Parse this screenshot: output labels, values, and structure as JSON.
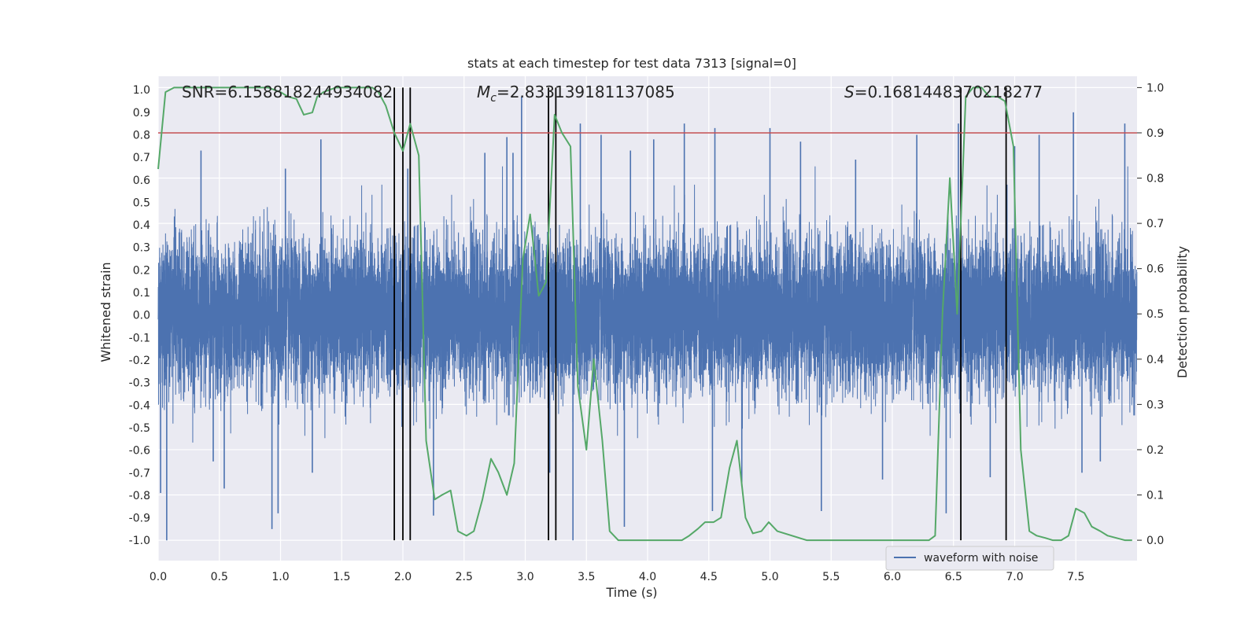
{
  "chart_data": {
    "type": "line",
    "title": "stats at each timestep for test data 7313 [signal=0]",
    "xlabel": "Time (s)",
    "ylabel_left": "Whitened strain",
    "ylabel_right": "Detection probability",
    "xlim": [
      0,
      8.0
    ],
    "ylim_left": [
      -1.09,
      1.06
    ],
    "ylim_right": [
      -0.045,
      1.025
    ],
    "x_ticks": [
      0.0,
      0.5,
      1.0,
      1.5,
      2.0,
      2.5,
      3.0,
      3.5,
      4.0,
      4.5,
      5.0,
      5.5,
      6.0,
      6.5,
      7.0,
      7.5
    ],
    "x_tick_labels": [
      "0.0",
      "0.5",
      "1.0",
      "1.5",
      "2.0",
      "2.5",
      "3.0",
      "3.5",
      "4.0",
      "4.5",
      "5.0",
      "5.5",
      "6.0",
      "6.5",
      "7.0",
      "7.5"
    ],
    "y_left_ticks": [
      1.0,
      0.9,
      0.8,
      0.7,
      0.6,
      0.5,
      0.4,
      0.3,
      0.2,
      0.1,
      0.0,
      -0.1,
      -0.2,
      -0.3,
      -0.4,
      -0.5,
      -0.6,
      -0.7,
      -0.8,
      -0.9,
      -1.0
    ],
    "y_left_tick_labels": [
      "1.0",
      "0.9",
      "0.8",
      "0.7",
      "0.6",
      "0.5",
      "0.4",
      "0.3",
      "0.2",
      "0.1",
      "0.0",
      "-0.1",
      "-0.2",
      "-0.3",
      "-0.4",
      "-0.5",
      "-0.6",
      "-0.7",
      "-0.8",
      "-0.9",
      "-1.0"
    ],
    "y_right_ticks": [
      1.0,
      0.9,
      0.8,
      0.7,
      0.6,
      0.5,
      0.4,
      0.3,
      0.2,
      0.1,
      0.0
    ],
    "y_right_tick_labels": [
      "1.0",
      "0.9",
      "0.8",
      "0.7",
      "0.6",
      "0.5",
      "0.4",
      "0.3",
      "0.2",
      "0.1",
      "0.0"
    ],
    "annotations": {
      "snr": "SNR=6.158818244934082",
      "mc_symbol": "M",
      "mc_sub": "c",
      "mc_value": "=2.833139181137085",
      "s_symbol": "S",
      "s_value": "=0.1681448370218277"
    },
    "legend": {
      "label": "waveform with noise",
      "position": "lower-right"
    },
    "threshold_line": {
      "axis": "right",
      "value": 0.9,
      "color": "#c44e52"
    },
    "vertical_lines": [
      1.93,
      2.0,
      2.06,
      3.19,
      3.25,
      6.56,
      6.93
    ],
    "waveform": {
      "name": "waveform with noise",
      "color": "#4c72b0",
      "sample_rate_hz": 2048,
      "duration_s": 8.0,
      "envelope": 0.42,
      "spikes": [
        {
          "t": 0.02,
          "v": -0.79
        },
        {
          "t": 0.07,
          "v": -1.0
        },
        {
          "t": 0.35,
          "v": 0.73
        },
        {
          "t": 0.45,
          "v": -0.65
        },
        {
          "t": 0.54,
          "v": -0.77
        },
        {
          "t": 0.93,
          "v": -0.95
        },
        {
          "t": 0.98,
          "v": -0.88
        },
        {
          "t": 1.04,
          "v": 0.65
        },
        {
          "t": 1.33,
          "v": 0.78
        },
        {
          "t": 1.26,
          "v": -0.7
        },
        {
          "t": 2.04,
          "v": 0.65
        },
        {
          "t": 2.25,
          "v": -0.89
        },
        {
          "t": 2.67,
          "v": 0.72
        },
        {
          "t": 2.85,
          "v": 0.79
        },
        {
          "t": 2.9,
          "v": 0.72
        },
        {
          "t": 2.97,
          "v": 0.97
        },
        {
          "t": 3.2,
          "v": -0.7
        },
        {
          "t": 3.39,
          "v": -1.0
        },
        {
          "t": 3.45,
          "v": 0.85
        },
        {
          "t": 3.62,
          "v": 0.8
        },
        {
          "t": 3.81,
          "v": -0.94
        },
        {
          "t": 3.86,
          "v": 0.73
        },
        {
          "t": 4.05,
          "v": 0.78
        },
        {
          "t": 4.3,
          "v": 0.85
        },
        {
          "t": 4.53,
          "v": -0.87
        },
        {
          "t": 4.55,
          "v": 0.83
        },
        {
          "t": 4.77,
          "v": -0.76
        },
        {
          "t": 5.0,
          "v": 0.83
        },
        {
          "t": 5.25,
          "v": 0.77
        },
        {
          "t": 5.42,
          "v": -0.87
        },
        {
          "t": 5.7,
          "v": 0.69
        },
        {
          "t": 5.92,
          "v": -0.73
        },
        {
          "t": 6.2,
          "v": 0.8
        },
        {
          "t": 6.44,
          "v": -0.88
        },
        {
          "t": 6.54,
          "v": 0.85
        },
        {
          "t": 6.8,
          "v": -0.72
        },
        {
          "t": 7.0,
          "v": 0.75
        },
        {
          "t": 7.2,
          "v": 0.8
        },
        {
          "t": 7.48,
          "v": 0.9
        },
        {
          "t": 7.55,
          "v": -0.7
        },
        {
          "t": 7.7,
          "v": -0.65
        },
        {
          "t": 7.9,
          "v": 0.85
        }
      ]
    },
    "detection_probability": {
      "name": "detection probability",
      "color": "#55a868",
      "axis": "right",
      "x": [
        0.0,
        0.06,
        0.13,
        0.2,
        0.3,
        0.4,
        0.5,
        0.6,
        0.7,
        0.8,
        0.9,
        1.0,
        1.06,
        1.13,
        1.19,
        1.26,
        1.3,
        1.35,
        1.45,
        1.55,
        1.65,
        1.75,
        1.8,
        1.86,
        1.93,
        2.0,
        2.06,
        2.13,
        2.19,
        2.26,
        2.32,
        2.39,
        2.45,
        2.52,
        2.58,
        2.65,
        2.72,
        2.78,
        2.85,
        2.91,
        2.98,
        3.04,
        3.11,
        3.17,
        3.24,
        3.3,
        3.37,
        3.43,
        3.5,
        3.56,
        3.63,
        3.69,
        3.76,
        3.82,
        3.95,
        4.08,
        4.21,
        4.28,
        4.34,
        4.41,
        4.47,
        4.54,
        4.6,
        4.67,
        4.73,
        4.8,
        4.86,
        4.93,
        4.99,
        5.06,
        5.3,
        5.6,
        5.9,
        6.2,
        6.3,
        6.35,
        6.41,
        6.47,
        6.53,
        6.6,
        6.66,
        6.73,
        6.79,
        6.86,
        6.92,
        6.99,
        7.05,
        7.12,
        7.18,
        7.25,
        7.31,
        7.38,
        7.44,
        7.5,
        7.57,
        7.63,
        7.7,
        7.76,
        7.83,
        7.9,
        7.96
      ],
      "y": [
        0.82,
        0.99,
        1.0,
        1.0,
        1.0,
        1.0,
        1.0,
        1.0,
        1.0,
        1.0,
        1.0,
        0.99,
        0.98,
        0.975,
        0.94,
        0.945,
        0.98,
        0.99,
        1.0,
        1.0,
        1.0,
        1.0,
        0.99,
        0.96,
        0.9,
        0.86,
        0.92,
        0.85,
        0.22,
        0.09,
        0.1,
        0.11,
        0.02,
        0.01,
        0.02,
        0.09,
        0.18,
        0.15,
        0.1,
        0.17,
        0.62,
        0.72,
        0.54,
        0.57,
        0.94,
        0.9,
        0.87,
        0.34,
        0.2,
        0.4,
        0.22,
        0.02,
        0.0,
        0.0,
        0.0,
        0.0,
        0.0,
        0.0,
        0.01,
        0.025,
        0.04,
        0.04,
        0.05,
        0.16,
        0.22,
        0.05,
        0.015,
        0.02,
        0.04,
        0.02,
        0.0,
        0.0,
        0.0,
        0.0,
        0.0,
        0.01,
        0.5,
        0.8,
        0.5,
        0.98,
        1.0,
        1.0,
        0.98,
        0.98,
        0.97,
        0.87,
        0.2,
        0.02,
        0.01,
        0.005,
        0.0,
        0.0,
        0.01,
        0.07,
        0.06,
        0.03,
        0.02,
        0.01,
        0.005,
        0.0,
        0.0
      ]
    }
  }
}
